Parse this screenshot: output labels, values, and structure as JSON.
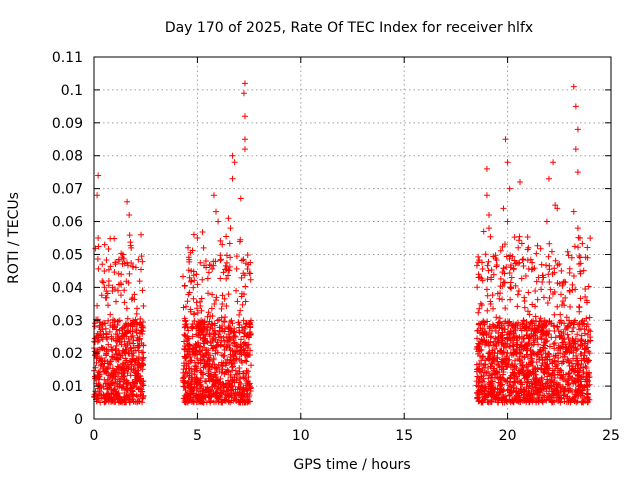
{
  "chart_data": {
    "type": "scatter",
    "title": "Day 170 of 2025, Rate Of TEC Index for receiver hlfx",
    "xlabel": "GPS time / hours",
    "ylabel": "ROTI / TECUs",
    "xlim": [
      0,
      25
    ],
    "ylim": [
      0,
      0.11
    ],
    "xticks": [
      "0",
      "5",
      "10",
      "15",
      "20",
      "25"
    ],
    "yticks": [
      "0",
      "0.01",
      "0.02",
      "0.03",
      "0.04",
      "0.05",
      "0.06",
      "0.07",
      "0.08",
      "0.09",
      "0.1",
      "0.11"
    ],
    "grid": true,
    "marker": "+",
    "color": "#ff0000",
    "series": [
      {
        "name": "ROTI",
        "segments": [
          {
            "x_start": 0.0,
            "x_end": 2.4,
            "typical_range": [
              0.005,
              0.03
            ],
            "max": 0.074
          },
          {
            "x_start": 4.3,
            "x_end": 7.6,
            "typical_range": [
              0.005,
              0.03
            ],
            "max": 0.102
          },
          {
            "x_start": 18.5,
            "x_end": 24.0,
            "typical_range": [
              0.005,
              0.03
            ],
            "max": 0.101
          }
        ],
        "peaks": [
          {
            "x": 0.2,
            "y": 0.074
          },
          {
            "x": 0.15,
            "y": 0.068
          },
          {
            "x": 0.2,
            "y": 0.055
          },
          {
            "x": 1.6,
            "y": 0.066
          },
          {
            "x": 1.7,
            "y": 0.062
          },
          {
            "x": 1.4,
            "y": 0.05
          },
          {
            "x": 1.2,
            "y": 0.048
          },
          {
            "x": 1.8,
            "y": 0.052
          },
          {
            "x": 0.9,
            "y": 0.04
          },
          {
            "x": 5.0,
            "y": 0.055
          },
          {
            "x": 5.3,
            "y": 0.052
          },
          {
            "x": 5.8,
            "y": 0.068
          },
          {
            "x": 5.9,
            "y": 0.063
          },
          {
            "x": 6.0,
            "y": 0.06
          },
          {
            "x": 6.2,
            "y": 0.053
          },
          {
            "x": 6.5,
            "y": 0.061
          },
          {
            "x": 6.6,
            "y": 0.058
          },
          {
            "x": 6.7,
            "y": 0.073
          },
          {
            "x": 6.7,
            "y": 0.08
          },
          {
            "x": 6.8,
            "y": 0.078
          },
          {
            "x": 7.1,
            "y": 0.067
          },
          {
            "x": 7.3,
            "y": 0.085
          },
          {
            "x": 7.3,
            "y": 0.092
          },
          {
            "x": 7.25,
            "y": 0.099
          },
          {
            "x": 7.3,
            "y": 0.102
          },
          {
            "x": 7.3,
            "y": 0.082
          },
          {
            "x": 4.7,
            "y": 0.045
          },
          {
            "x": 19.0,
            "y": 0.076
          },
          {
            "x": 19.0,
            "y": 0.068
          },
          {
            "x": 19.1,
            "y": 0.062
          },
          {
            "x": 19.1,
            "y": 0.058
          },
          {
            "x": 19.9,
            "y": 0.085
          },
          {
            "x": 20.0,
            "y": 0.078
          },
          {
            "x": 20.1,
            "y": 0.07
          },
          {
            "x": 19.8,
            "y": 0.064
          },
          {
            "x": 20.0,
            "y": 0.06
          },
          {
            "x": 20.6,
            "y": 0.072
          },
          {
            "x": 22.2,
            "y": 0.078
          },
          {
            "x": 22.0,
            "y": 0.073
          },
          {
            "x": 22.3,
            "y": 0.065
          },
          {
            "x": 22.4,
            "y": 0.064
          },
          {
            "x": 21.9,
            "y": 0.06
          },
          {
            "x": 23.2,
            "y": 0.101
          },
          {
            "x": 23.3,
            "y": 0.095
          },
          {
            "x": 23.4,
            "y": 0.088
          },
          {
            "x": 23.3,
            "y": 0.082
          },
          {
            "x": 23.4,
            "y": 0.075
          },
          {
            "x": 23.2,
            "y": 0.063
          },
          {
            "x": 23.4,
            "y": 0.058
          },
          {
            "x": 23.5,
            "y": 0.055
          },
          {
            "x": 18.6,
            "y": 0.044
          },
          {
            "x": 20.2,
            "y": 0.043
          },
          {
            "x": 21.5,
            "y": 0.043
          },
          {
            "x": 22.6,
            "y": 0.045
          }
        ]
      }
    ]
  }
}
